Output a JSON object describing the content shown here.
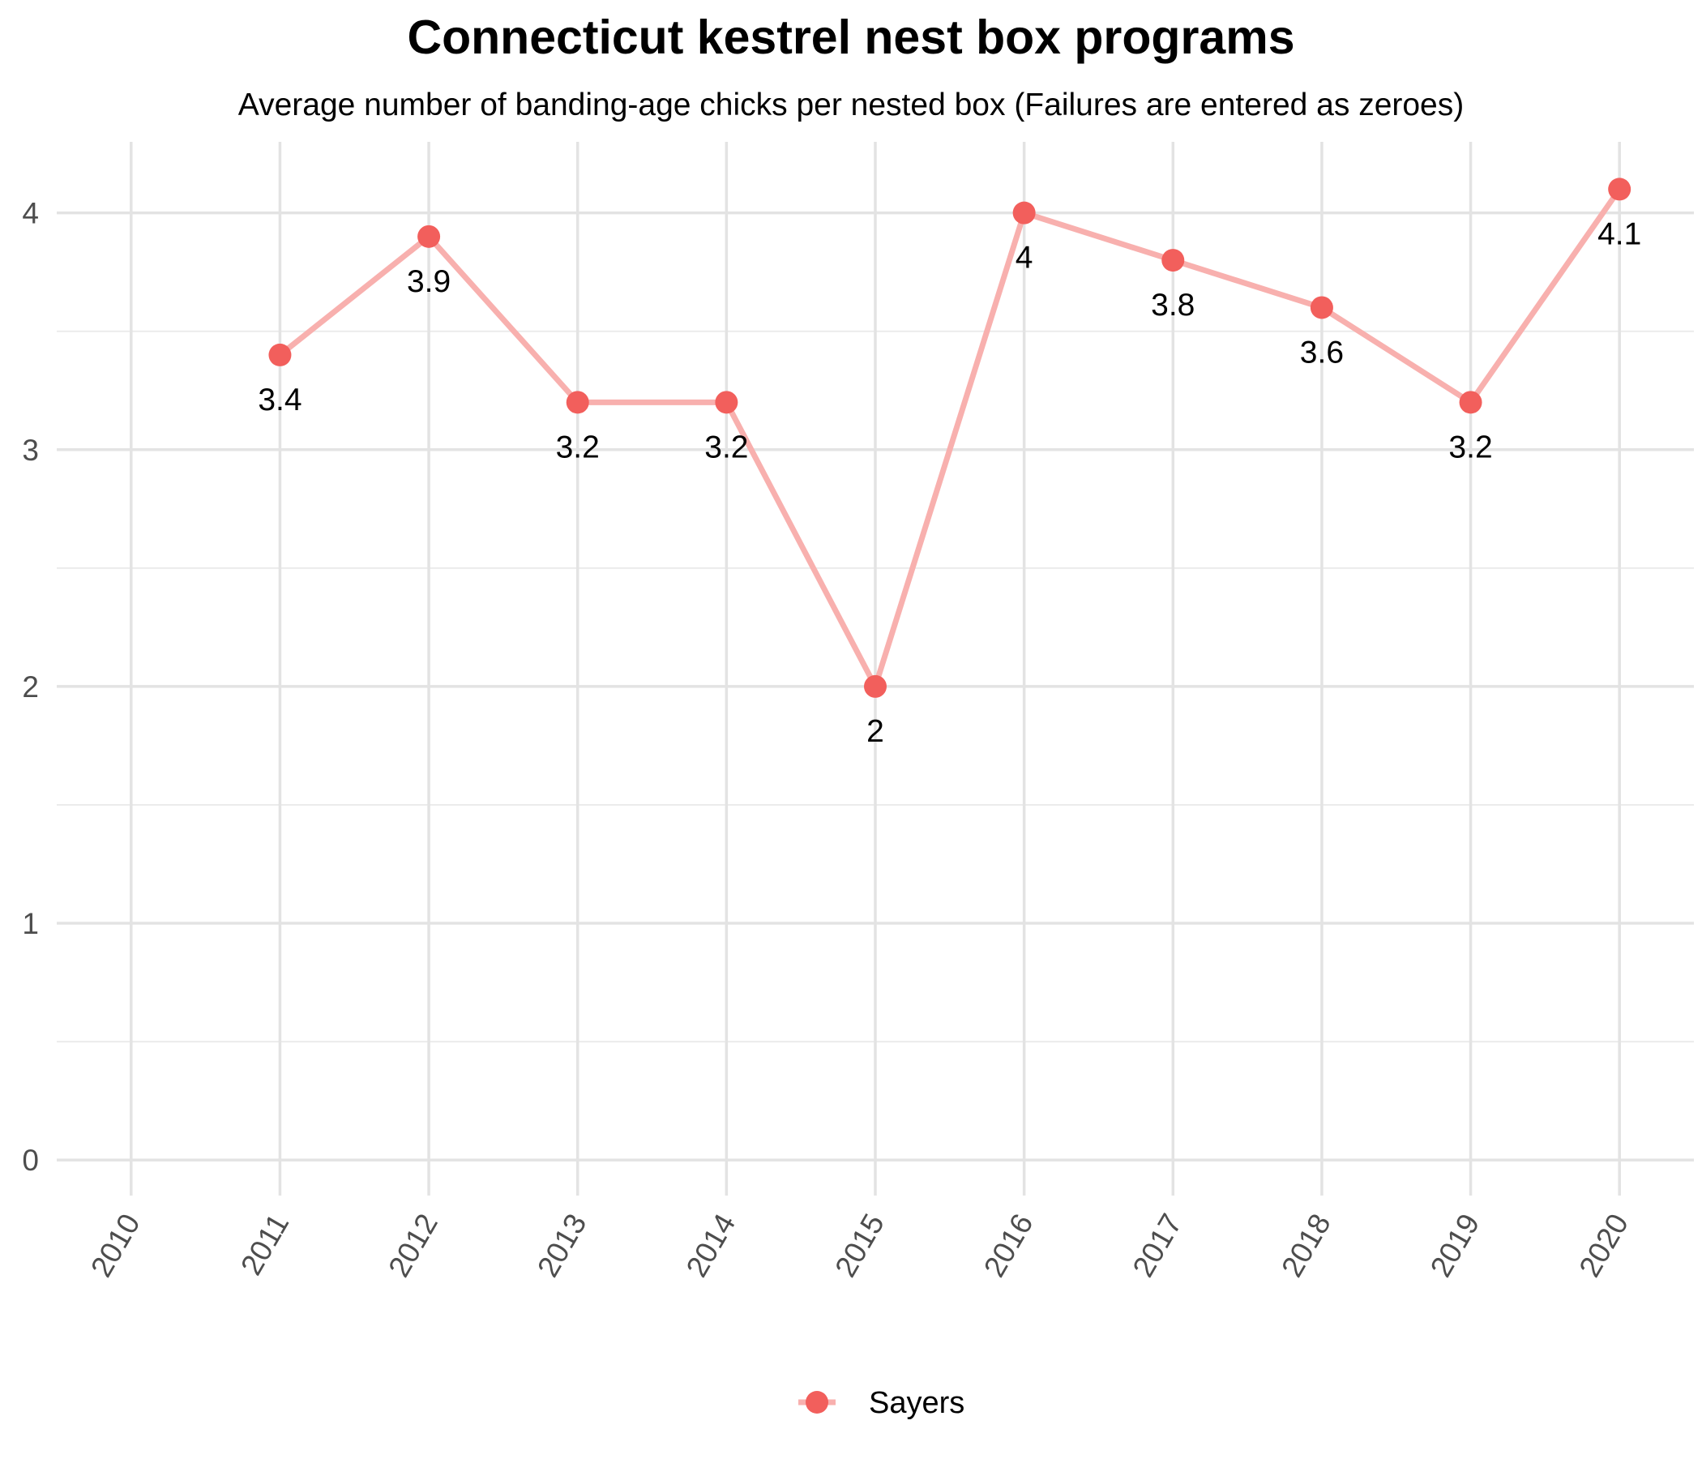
{
  "chart_data": {
    "type": "line",
    "title": "Connecticut kestrel nest box programs",
    "subtitle": "Average number of banding-age chicks per nested box (Failures are entered as zeroes)",
    "xlabel": "",
    "ylabel": "",
    "x": [
      2010,
      2011,
      2012,
      2013,
      2014,
      2015,
      2016,
      2017,
      2018,
      2019,
      2020
    ],
    "x_tick_labels": [
      "2010",
      "2011",
      "2012",
      "2013",
      "2014",
      "2015",
      "2016",
      "2017",
      "2018",
      "2019",
      "2020"
    ],
    "y_ticks": [
      0,
      1,
      2,
      3,
      4
    ],
    "y_tick_labels": [
      "0",
      "1",
      "2",
      "3",
      "4"
    ],
    "xlim": [
      2009.5,
      2020.5
    ],
    "ylim": [
      -0.15,
      4.3
    ],
    "grid": true,
    "legend_position": "bottom",
    "series": [
      {
        "name": "Sayers",
        "line_color": "#f8b0ae",
        "point_color": "#f25f5c",
        "points": [
          {
            "x": 2011,
            "y": 3.4,
            "label": "3.4"
          },
          {
            "x": 2012,
            "y": 3.9,
            "label": "3.9"
          },
          {
            "x": 2013,
            "y": 3.2,
            "label": "3.2"
          },
          {
            "x": 2014,
            "y": 3.2,
            "label": "3.2"
          },
          {
            "x": 2015,
            "y": 2.0,
            "label": "2"
          },
          {
            "x": 2016,
            "y": 4.0,
            "label": "4"
          },
          {
            "x": 2017,
            "y": 3.8,
            "label": "3.8"
          },
          {
            "x": 2018,
            "y": 3.6,
            "label": "3.6"
          },
          {
            "x": 2019,
            "y": 3.2,
            "label": "3.2"
          },
          {
            "x": 2020,
            "y": 4.1,
            "label": "4.1"
          }
        ]
      }
    ]
  }
}
